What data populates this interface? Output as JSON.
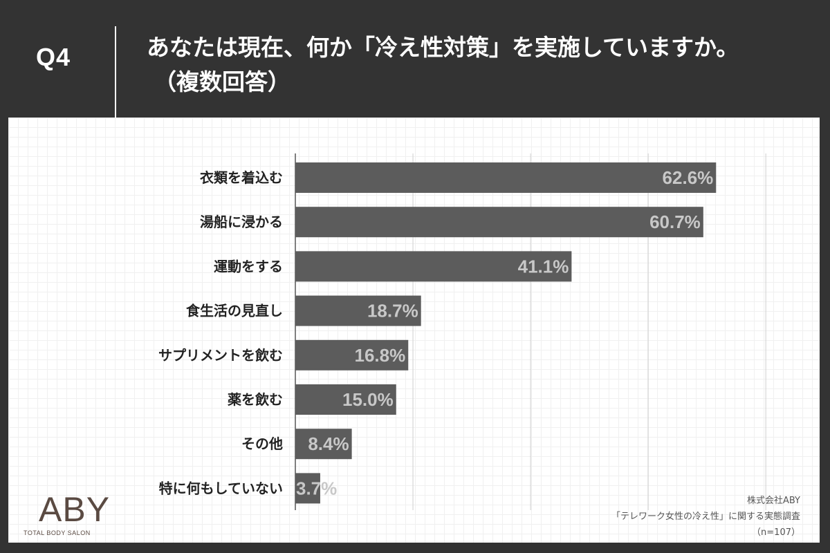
{
  "header": {
    "question_number": "Q4",
    "title_line1": "あなたは現在、何か「冷え性対策」を実施していますか。",
    "title_line2": "（複数回答）"
  },
  "chart_data": {
    "type": "bar",
    "orientation": "horizontal",
    "categories": [
      "衣類を着込む",
      "湯船に浸かる",
      "運動をする",
      "食生活の見直し",
      "サプリメントを飲む",
      "薬を飲む",
      "その他",
      "特に何もしていない"
    ],
    "values": [
      62.6,
      60.7,
      41.1,
      18.7,
      16.8,
      15.0,
      8.4,
      3.7
    ],
    "value_labels": [
      "62.6%",
      "60.7%",
      "41.1%",
      "18.7%",
      "16.8%",
      "15.0%",
      "8.4%",
      "3.7%"
    ],
    "unit": "%",
    "xlim": [
      0,
      70
    ],
    "grid": true,
    "bar_color": "#5c5c5c",
    "label_color": "#c8c8c8"
  },
  "footer": {
    "logo_text": "ABY",
    "logo_subtitle": "TOTAL BODY SALON",
    "source_company": "株式会社ABY",
    "source_survey": "「テレワーク女性の冷え性」に関する実態調査",
    "sample_size": "（n=107）"
  },
  "colors": {
    "background": "#333333",
    "header_text": "#ffffff",
    "panel": "#ffffff",
    "bar": "#5c5c5c",
    "logo": "#5a4a42"
  }
}
